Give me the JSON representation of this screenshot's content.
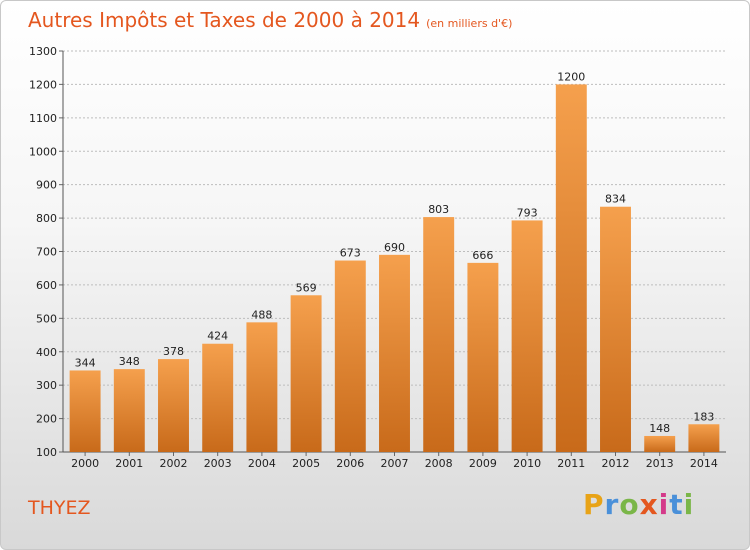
{
  "chart_data": {
    "type": "bar",
    "title": "Autres Impôts et Taxes de 2000 à 2014",
    "unit_label": "(en milliers d'€)",
    "categories": [
      "2000",
      "2001",
      "2002",
      "2003",
      "2004",
      "2005",
      "2006",
      "2007",
      "2008",
      "2009",
      "2010",
      "2011",
      "2012",
      "2013",
      "2014"
    ],
    "values": [
      344,
      348,
      378,
      424,
      488,
      569,
      673,
      690,
      803,
      666,
      793,
      1200,
      834,
      148,
      183
    ],
    "ylim": [
      100,
      1300
    ],
    "yticks": [
      100,
      200,
      300,
      400,
      500,
      600,
      700,
      800,
      900,
      1000,
      1100,
      1200,
      1300
    ],
    "grid": true,
    "bar_color": "#f5a04d",
    "bar_color_dark": "#c86a1a"
  },
  "commune": "THYEZ",
  "logo": {
    "letters": [
      "P",
      "r",
      "o",
      "x",
      "i",
      "t",
      "i"
    ],
    "colors": [
      "#e8a317",
      "#4a90d9",
      "#7ab648",
      "#e4571f",
      "#d43a8a",
      "#4a90d9",
      "#7ab648"
    ]
  },
  "colors": {
    "accent": "#e4571f"
  }
}
